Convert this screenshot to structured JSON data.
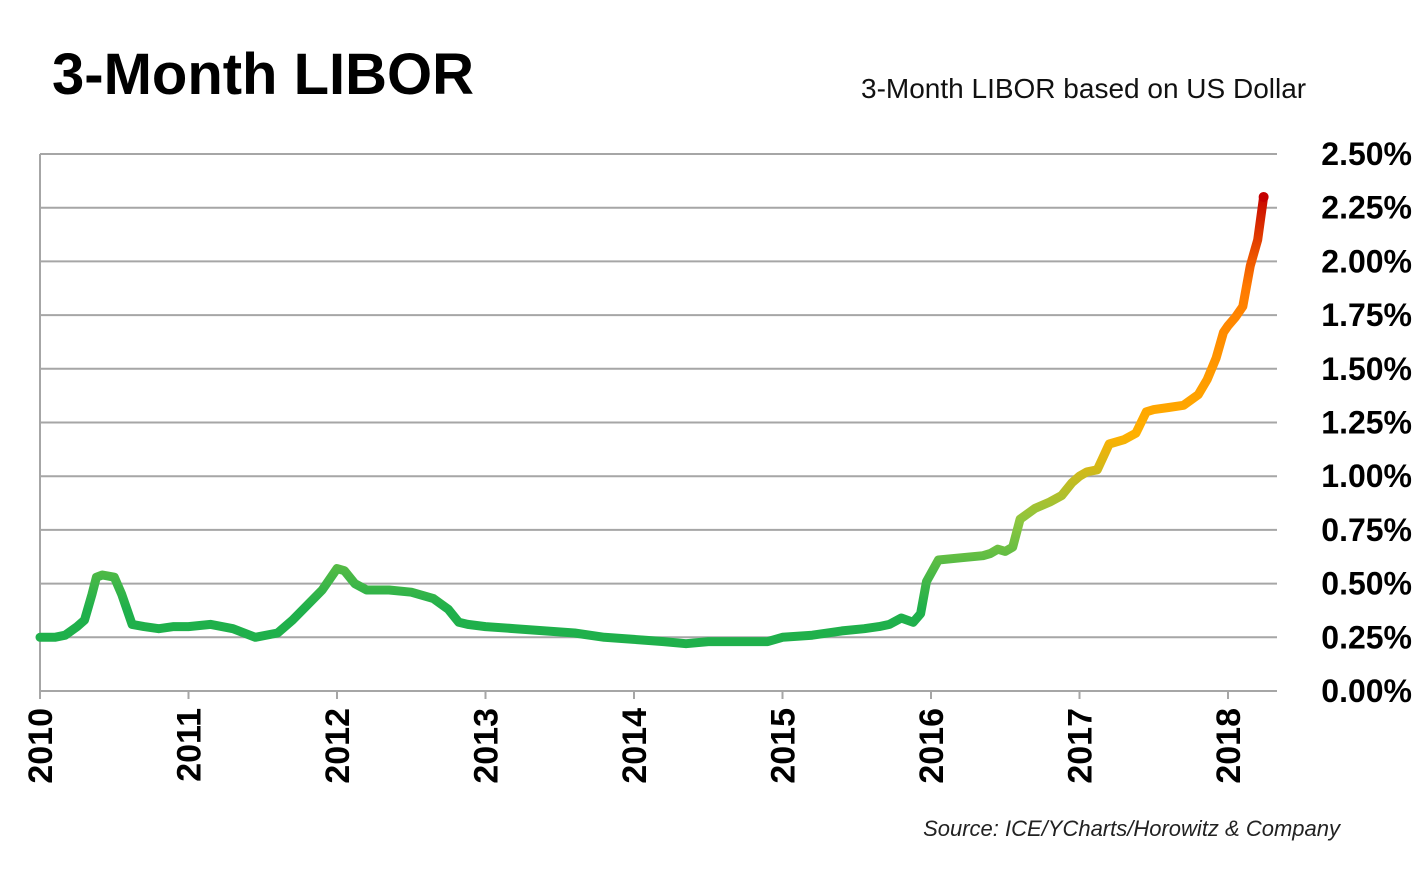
{
  "chart_data": {
    "type": "line",
    "title": "3-Month LIBOR",
    "xlabel": "",
    "ylabel": "",
    "legend": {
      "label": "3-Month LIBOR based on US Dollar",
      "placement": "top-right"
    },
    "source": "Source: ICE/YCharts/Horowitz & Company",
    "grid": true,
    "xlim": [
      2010,
      2018.3
    ],
    "ylim": [
      0,
      2.5
    ],
    "x_ticks": [
      "2010",
      "2011",
      "2012",
      "2013",
      "2014",
      "2015",
      "2016",
      "2017",
      "2018"
    ],
    "y_ticks": [
      "0.00%",
      "0.25%",
      "0.50%",
      "0.75%",
      "1.00%",
      "1.25%",
      "1.50%",
      "1.75%",
      "2.00%",
      "2.25%",
      "2.50%"
    ],
    "colors": {
      "low": "#1fb04b",
      "mid_low": "#8cc63f",
      "mid": "#ffb000",
      "high": "#ff7a00",
      "peak": "#c40000",
      "grid": "#a6a6a6"
    },
    "series": [
      {
        "name": "3-Month LIBOR based on US Dollar",
        "x": [
          2010.0,
          2010.1,
          2010.17,
          2010.25,
          2010.3,
          2010.35,
          2010.38,
          2010.42,
          2010.5,
          2010.55,
          2010.62,
          2010.7,
          2010.8,
          2010.9,
          2011.0,
          2011.15,
          2011.3,
          2011.45,
          2011.6,
          2011.7,
          2011.8,
          2011.9,
          2011.95,
          2012.0,
          2012.05,
          2012.12,
          2012.2,
          2012.35,
          2012.5,
          2012.65,
          2012.75,
          2012.82,
          2012.88,
          2013.0,
          2013.2,
          2013.4,
          2013.6,
          2013.8,
          2014.0,
          2014.2,
          2014.35,
          2014.5,
          2014.7,
          2014.9,
          2015.0,
          2015.2,
          2015.4,
          2015.55,
          2015.65,
          2015.72,
          2015.8,
          2015.88,
          2015.93,
          2015.97,
          2016.05,
          2016.2,
          2016.35,
          2016.4,
          2016.45,
          2016.5,
          2016.55,
          2016.6,
          2016.7,
          2016.8,
          2016.88,
          2016.95,
          2017.0,
          2017.05,
          2017.12,
          2017.2,
          2017.3,
          2017.38,
          2017.45,
          2017.5,
          2017.6,
          2017.7,
          2017.8,
          2017.86,
          2017.92,
          2017.97,
          2018.0,
          2018.05,
          2018.1,
          2018.15,
          2018.2,
          2018.24
        ],
        "values": [
          0.25,
          0.25,
          0.26,
          0.3,
          0.33,
          0.45,
          0.53,
          0.54,
          0.53,
          0.45,
          0.31,
          0.3,
          0.29,
          0.3,
          0.3,
          0.31,
          0.29,
          0.25,
          0.27,
          0.33,
          0.4,
          0.47,
          0.52,
          0.57,
          0.56,
          0.5,
          0.47,
          0.47,
          0.46,
          0.43,
          0.38,
          0.32,
          0.31,
          0.3,
          0.29,
          0.28,
          0.27,
          0.25,
          0.24,
          0.23,
          0.22,
          0.23,
          0.23,
          0.23,
          0.25,
          0.26,
          0.28,
          0.29,
          0.3,
          0.31,
          0.34,
          0.32,
          0.36,
          0.51,
          0.61,
          0.62,
          0.63,
          0.64,
          0.66,
          0.65,
          0.67,
          0.8,
          0.85,
          0.88,
          0.91,
          0.97,
          1.0,
          1.02,
          1.03,
          1.15,
          1.17,
          1.2,
          1.3,
          1.31,
          1.32,
          1.33,
          1.38,
          1.45,
          1.55,
          1.67,
          1.7,
          1.74,
          1.79,
          1.98,
          2.1,
          2.3
        ]
      }
    ]
  }
}
